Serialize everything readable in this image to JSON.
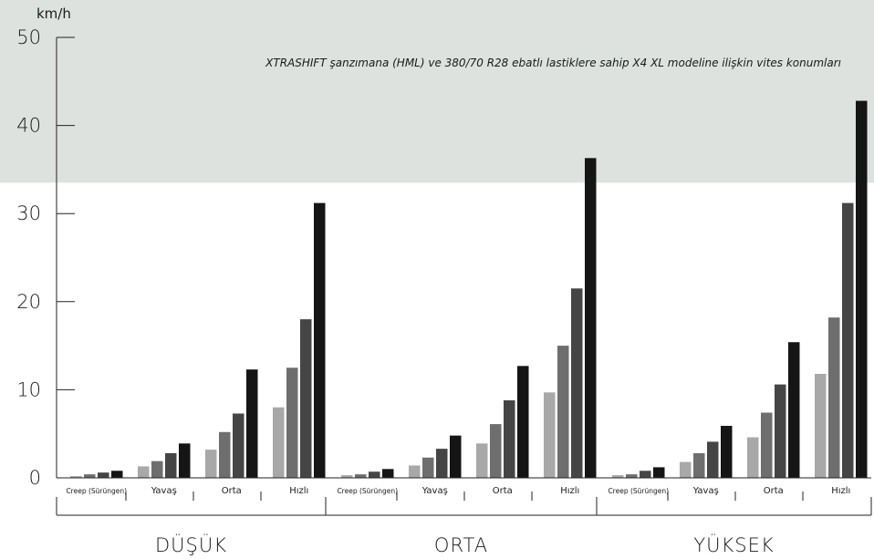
{
  "chart_data": {
    "type": "bar",
    "title": "XTRASHIFT şanzımana (HML) ve 380/70 R28 ebatlı lastiklere sahip X4 XL modeline ilişkin vites konumları",
    "ylabel": "km/h",
    "ylim": [
      0,
      50
    ],
    "yticks": [
      0,
      10,
      20,
      30,
      40,
      50
    ],
    "highlight_band": {
      "from": 33.5,
      "to": 50,
      "color": "#dde2df"
    },
    "grid": false,
    "legend": "none",
    "bar_colors": [
      "#a8a8a8",
      "#6e6e6e",
      "#454545",
      "#151515"
    ],
    "ranges": [
      {
        "label": "DÜŞÜK",
        "groups": [
          {
            "label": "Creep (Sürüngen)",
            "values": [
              0.2,
              0.4,
              0.6,
              0.8
            ]
          },
          {
            "label": "Yavaş",
            "values": [
              1.3,
              1.9,
              2.8,
              3.9
            ]
          },
          {
            "label": "Orta",
            "values": [
              3.2,
              5.2,
              7.3,
              12.3
            ]
          },
          {
            "label": "Hızlı",
            "values": [
              8.0,
              12.5,
              18.0,
              31.2
            ]
          }
        ]
      },
      {
        "label": "ORTA",
        "groups": [
          {
            "label": "Creep (Sürüngen)",
            "values": [
              0.3,
              0.4,
              0.7,
              1.0
            ]
          },
          {
            "label": "Yavaş",
            "values": [
              1.4,
              2.3,
              3.3,
              4.8
            ]
          },
          {
            "label": "Orta",
            "values": [
              3.9,
              6.1,
              8.8,
              12.7
            ]
          },
          {
            "label": "Hızlı",
            "values": [
              9.7,
              15.0,
              21.5,
              36.3
            ]
          }
        ]
      },
      {
        "label": "YÜKSEK",
        "groups": [
          {
            "label": "Creep (Sürüngen)",
            "values": [
              0.3,
              0.4,
              0.8,
              1.2
            ]
          },
          {
            "label": "Yavaş",
            "values": [
              1.8,
              2.8,
              4.1,
              5.9
            ]
          },
          {
            "label": "Orta",
            "values": [
              4.6,
              7.4,
              10.6,
              15.4
            ]
          },
          {
            "label": "Hızlı",
            "values": [
              11.8,
              18.2,
              31.2,
              42.8
            ]
          }
        ]
      }
    ]
  }
}
